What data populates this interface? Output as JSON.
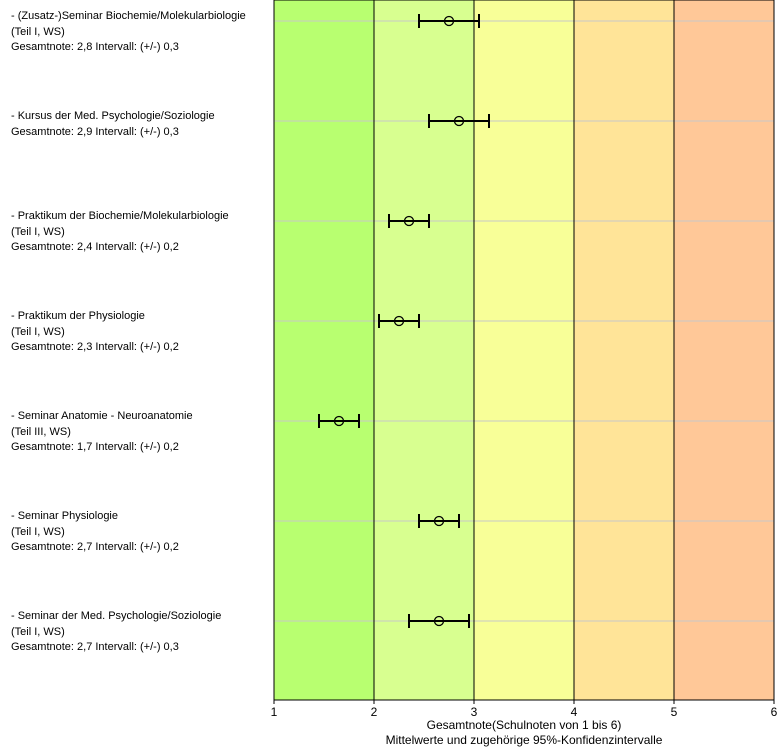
{
  "chart_data": {
    "type": "scatter",
    "subtype": "dot-with-error-bars",
    "xlabel": "Gesamtnote(Schulnoten von 1 bis 6)",
    "subtitle": "Mittelwerte und zugehörige 95%-Konfidenzintervalle",
    "xlim": [
      1,
      6
    ],
    "xticks": [
      "1",
      "2",
      "3",
      "4",
      "5",
      "6"
    ],
    "grid": true,
    "bands": [
      {
        "from": 1,
        "to": 2,
        "color": "#b8ff70"
      },
      {
        "from": 2,
        "to": 3,
        "color": "#d8ff90"
      },
      {
        "from": 3,
        "to": 4,
        "color": "#f8ff98"
      },
      {
        "from": 4,
        "to": 5,
        "color": "#ffe498"
      },
      {
        "from": 5,
        "to": 6,
        "color": "#ffc898"
      }
    ],
    "items": [
      {
        "name": "- (Zusatz-)Seminar Biochemie/Molekularbiologie",
        "detail": "(Teil I, WS)",
        "summary": "Gesamtnote: 2,8 Intervall: (+/-) 0,3",
        "mean": 2.75,
        "ci": 0.3
      },
      {
        "name": "- Kursus der Med. Psychologie/Soziologie",
        "detail": "",
        "summary": "Gesamtnote: 2,9 Intervall: (+/-) 0,3",
        "mean": 2.85,
        "ci": 0.3
      },
      {
        "name": "- Praktikum der Biochemie/Molekularbiologie",
        "detail": "(Teil I, WS)",
        "summary": "Gesamtnote: 2,4 Intervall: (+/-) 0,2",
        "mean": 2.35,
        "ci": 0.2
      },
      {
        "name": "- Praktikum der Physiologie",
        "detail": "(Teil I, WS)",
        "summary": "Gesamtnote: 2,3 Intervall: (+/-) 0,2",
        "mean": 2.25,
        "ci": 0.2
      },
      {
        "name": "- Seminar Anatomie - Neuroanatomie",
        "detail": "(Teil III, WS)",
        "summary": "Gesamtnote: 1,7 Intervall: (+/-) 0,2",
        "mean": 1.65,
        "ci": 0.2
      },
      {
        "name": "- Seminar Physiologie",
        "detail": "(Teil I, WS)",
        "summary": "Gesamtnote: 2,7 Intervall: (+/-) 0,2",
        "mean": 2.65,
        "ci": 0.2
      },
      {
        "name": "- Seminar der Med. Psychologie/Soziologie",
        "detail": "(Teil I, WS)",
        "summary": "Gesamtnote: 2,7 Intervall: (+/-) 0,3",
        "mean": 2.65,
        "ci": 0.3
      }
    ]
  }
}
